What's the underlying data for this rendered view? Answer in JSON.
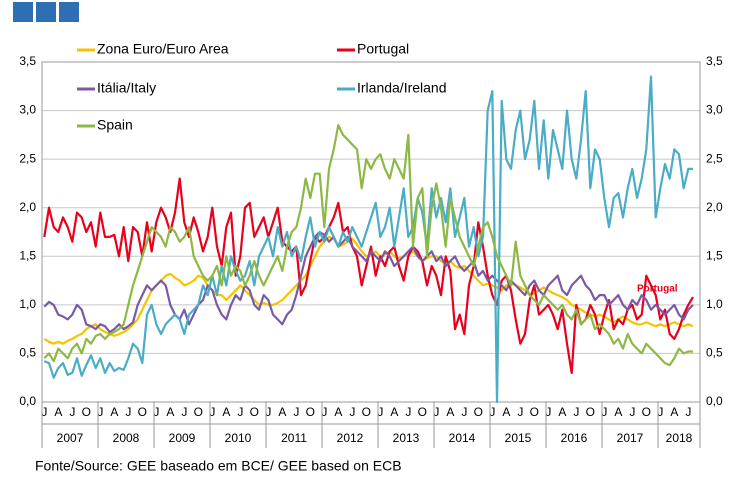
{
  "chart_data": {
    "type": "line",
    "categories": [
      "J",
      null,
      null,
      "A",
      null,
      null,
      "J",
      null,
      null,
      "O",
      null,
      null,
      "J",
      null,
      null,
      "A",
      null,
      null,
      "J",
      null,
      null,
      "O",
      null,
      null,
      "J",
      null,
      null,
      "A",
      null,
      null,
      "J",
      null,
      null,
      "O",
      null,
      null,
      "J",
      null,
      null,
      "A",
      null,
      null,
      "J",
      null,
      null,
      "O",
      null,
      null,
      "J",
      null,
      null,
      "A",
      null,
      null,
      "J",
      null,
      null,
      "O",
      null,
      null,
      "J",
      null,
      null,
      "A",
      null,
      null,
      "J",
      null,
      null,
      "O",
      null,
      null,
      "J",
      null,
      null,
      "A",
      null,
      null,
      "J",
      null,
      null,
      "O",
      null,
      null,
      "J",
      null,
      null,
      "A",
      null,
      null,
      "J",
      null,
      null,
      "O",
      null,
      null,
      "J",
      null,
      null,
      "A",
      null,
      null,
      "J",
      null,
      null,
      "O",
      null,
      null,
      "J",
      null,
      null,
      "A",
      null,
      null,
      "J",
      null,
      null,
      "O",
      null,
      null,
      "J",
      null,
      null,
      "A",
      null,
      null,
      "J",
      null,
      null,
      "O",
      null,
      null,
      "J",
      null,
      null,
      "A",
      null,
      null,
      "J",
      null
    ],
    "year_labels": [
      "2007",
      "2008",
      "2009",
      "2010",
      "2011",
      "2012",
      "2013",
      "2014",
      "2015",
      "2016",
      "2017",
      "2018"
    ],
    "ylim": [
      0,
      3.5
    ],
    "yticks": [
      {
        "value": 0,
        "label": "0,0"
      },
      {
        "value": 0.5,
        "label": "0,5"
      },
      {
        "value": 1,
        "label": "1,0"
      },
      {
        "value": 1.5,
        "label": "1,5"
      },
      {
        "value": 2,
        "label": "2,0"
      },
      {
        "value": 2.5,
        "label": "2,5"
      },
      {
        "value": 3,
        "label": "3,0"
      },
      {
        "value": 3.5,
        "label": "3,5"
      }
    ],
    "grid": true,
    "annotation": "Portugal",
    "source": "Fonte/Source: GEE baseado em BCE/ GEE based on ECB",
    "series": [
      {
        "name": "Zona Euro/Euro Area",
        "color": "#f5c400",
        "values": [
          0.65,
          0.62,
          0.6,
          0.62,
          0.6,
          0.63,
          0.65,
          0.68,
          0.7,
          0.75,
          0.78,
          0.8,
          0.75,
          0.72,
          0.7,
          0.68,
          0.7,
          0.72,
          0.75,
          0.8,
          0.85,
          0.95,
          1.05,
          1.15,
          1.2,
          1.25,
          1.3,
          1.32,
          1.28,
          1.25,
          1.2,
          1.22,
          1.25,
          1.3,
          1.28,
          1.2,
          1.15,
          1.1,
          1.1,
          1.05,
          1.1,
          1.15,
          1.2,
          1.15,
          1.1,
          1.05,
          1.0,
          1.02,
          1.0,
          1.0,
          1.02,
          1.05,
          1.1,
          1.15,
          1.2,
          1.25,
          1.3,
          1.4,
          1.5,
          1.6,
          1.65,
          1.7,
          1.68,
          1.6,
          1.62,
          1.65,
          1.68,
          1.62,
          1.55,
          1.5,
          1.52,
          1.55,
          1.5,
          1.52,
          1.55,
          1.5,
          1.48,
          1.5,
          1.52,
          1.55,
          1.5,
          1.45,
          1.48,
          1.5,
          1.5,
          1.45,
          1.42,
          1.45,
          1.4,
          1.38,
          1.4,
          1.35,
          1.3,
          1.25,
          1.2,
          1.22,
          1.2,
          1.18,
          1.15,
          1.2,
          1.22,
          1.2,
          1.18,
          1.15,
          1.1,
          1.12,
          1.15,
          1.18,
          1.15,
          1.12,
          1.1,
          1.08,
          1.05,
          1.0,
          0.98,
          0.95,
          0.92,
          0.9,
          0.88,
          0.9,
          0.88,
          0.85,
          0.82,
          0.85,
          0.88,
          0.85,
          0.82,
          0.8,
          0.8,
          0.82,
          0.8,
          0.78,
          0.8,
          0.78,
          0.8,
          0.82,
          0.8,
          0.78,
          0.8,
          0.78
        ]
      },
      {
        "name": "Portugal",
        "color": "#e8001c",
        "values": [
          1.7,
          2.0,
          1.8,
          1.75,
          1.9,
          1.8,
          1.65,
          1.95,
          1.9,
          1.75,
          1.85,
          1.6,
          1.95,
          1.7,
          1.7,
          1.72,
          1.5,
          1.8,
          1.45,
          1.8,
          1.75,
          1.5,
          1.85,
          1.55,
          1.85,
          2.0,
          1.9,
          1.75,
          1.95,
          2.3,
          1.85,
          1.7,
          1.9,
          1.75,
          1.55,
          1.7,
          2.0,
          1.6,
          1.4,
          1.8,
          1.95,
          1.3,
          1.5,
          2.0,
          2.05,
          1.7,
          1.8,
          1.9,
          1.7,
          1.85,
          2.0,
          1.65,
          1.6,
          1.55,
          1.6,
          1.1,
          1.2,
          1.45,
          1.7,
          1.65,
          1.7,
          1.8,
          1.9,
          2.05,
          1.75,
          1.8,
          1.6,
          1.5,
          1.2,
          1.4,
          1.6,
          1.3,
          1.5,
          1.4,
          1.55,
          1.6,
          1.4,
          1.25,
          1.5,
          1.6,
          1.55,
          1.45,
          1.2,
          1.4,
          1.3,
          1.1,
          1.5,
          1.35,
          0.75,
          0.9,
          0.7,
          1.2,
          1.4,
          1.85,
          1.6,
          1.3,
          1.1,
          1.0,
          1.25,
          1.3,
          1.15,
          0.85,
          0.6,
          0.7,
          1.05,
          1.2,
          0.9,
          0.95,
          1.0,
          0.9,
          0.75,
          0.95,
          0.6,
          0.3,
          1.0,
          0.8,
          0.85,
          1.0,
          0.9,
          0.7,
          0.9,
          1.05,
          0.75,
          0.85,
          0.8,
          0.95,
          1.0,
          0.85,
          0.9,
          1.3,
          1.2,
          1.1,
          0.85,
          0.95,
          0.7,
          0.65,
          0.75,
          0.9,
          1.0,
          1.08
        ]
      },
      {
        "name": "Itália/Italy",
        "color": "#7a5aa6",
        "values": [
          0.98,
          1.03,
          1.0,
          0.9,
          0.88,
          0.85,
          0.9,
          1.0,
          0.95,
          0.8,
          0.78,
          0.75,
          0.8,
          0.78,
          0.72,
          0.75,
          0.8,
          0.75,
          0.78,
          0.82,
          1.0,
          1.1,
          1.2,
          1.15,
          1.2,
          1.25,
          1.2,
          1.0,
          0.9,
          0.85,
          0.95,
          0.8,
          0.9,
          1.0,
          1.05,
          1.2,
          1.15,
          1.0,
          0.9,
          0.85,
          1.0,
          1.1,
          1.05,
          1.2,
          1.15,
          1.0,
          0.95,
          1.1,
          1.05,
          0.9,
          0.85,
          0.8,
          0.9,
          0.95,
          1.1,
          1.3,
          1.5,
          1.6,
          1.7,
          1.75,
          1.72,
          1.65,
          1.7,
          1.6,
          1.65,
          1.7,
          1.6,
          1.55,
          1.5,
          1.45,
          1.55,
          1.5,
          1.45,
          1.55,
          1.5,
          1.4,
          1.45,
          1.5,
          1.55,
          1.6,
          1.5,
          1.45,
          1.5,
          1.55,
          1.45,
          1.5,
          1.4,
          1.45,
          1.5,
          1.4,
          1.35,
          1.4,
          1.45,
          1.3,
          1.35,
          1.25,
          1.3,
          1.25,
          1.2,
          1.15,
          1.25,
          1.2,
          1.15,
          1.1,
          1.2,
          1.25,
          1.15,
          1.1,
          1.2,
          1.25,
          1.3,
          1.15,
          1.1,
          1.2,
          1.25,
          1.3,
          1.2,
          1.15,
          1.05,
          1.1,
          1.1,
          1.0,
          1.05,
          1.1,
          1.0,
          0.95,
          1.05,
          1.0,
          1.1,
          1.05,
          0.95,
          1.0,
          0.95,
          0.9,
          0.95,
          1.0,
          0.9,
          0.85,
          0.95,
          1.0
        ]
      },
      {
        "name": "Irlanda/Ireland",
        "color": "#4bacc6",
        "values": [
          0.42,
          0.4,
          0.25,
          0.35,
          0.4,
          0.28,
          0.3,
          0.45,
          0.27,
          0.38,
          0.48,
          0.35,
          0.45,
          0.3,
          0.4,
          0.32,
          0.35,
          0.33,
          0.45,
          0.6,
          0.55,
          0.4,
          0.9,
          1.0,
          0.8,
          0.7,
          0.8,
          0.85,
          0.9,
          0.85,
          0.7,
          0.9,
          0.95,
          1.0,
          1.2,
          1.1,
          1.3,
          1.1,
          1.4,
          1.2,
          1.5,
          1.35,
          1.25,
          1.3,
          1.45,
          1.2,
          1.5,
          1.6,
          1.7,
          1.5,
          1.8,
          1.6,
          1.75,
          1.5,
          1.6,
          1.45,
          1.7,
          1.9,
          1.6,
          1.75,
          1.65,
          1.8,
          1.7,
          1.6,
          1.75,
          1.65,
          1.8,
          1.7,
          1.6,
          1.75,
          1.9,
          2.05,
          1.7,
          1.8,
          2.0,
          1.6,
          1.9,
          2.2,
          1.7,
          1.8,
          2.1,
          1.95,
          1.6,
          2.2,
          1.9,
          2.1,
          1.85,
          2.2,
          1.7,
          1.9,
          2.1,
          1.6,
          1.8,
          1.5,
          1.7,
          3.0,
          3.2,
          0.0,
          3.1,
          2.5,
          2.4,
          2.8,
          3.0,
          2.5,
          2.7,
          3.1,
          2.4,
          2.9,
          2.3,
          2.8,
          2.6,
          2.4,
          3.0,
          2.5,
          2.3,
          2.7,
          3.2,
          2.2,
          2.6,
          2.5,
          2.1,
          1.8,
          2.1,
          2.15,
          1.9,
          2.2,
          2.4,
          2.1,
          2.3,
          2.6,
          3.35,
          1.9,
          2.2,
          2.45,
          2.3,
          2.6,
          2.55,
          2.2,
          2.4,
          2.4
        ]
      },
      {
        "name": "Spain",
        "color": "#8db843",
        "values": [
          0.45,
          0.5,
          0.42,
          0.55,
          0.5,
          0.45,
          0.55,
          0.6,
          0.5,
          0.65,
          0.6,
          0.68,
          0.7,
          0.65,
          0.7,
          0.72,
          0.75,
          0.8,
          1.0,
          1.2,
          1.35,
          1.5,
          1.65,
          1.8,
          1.75,
          1.7,
          1.6,
          1.8,
          1.75,
          1.65,
          1.7,
          1.8,
          1.5,
          1.4,
          1.3,
          1.25,
          1.3,
          1.4,
          1.2,
          1.5,
          1.3,
          1.4,
          1.35,
          1.2,
          1.3,
          1.45,
          1.3,
          1.2,
          1.3,
          1.4,
          1.5,
          1.35,
          1.6,
          1.75,
          1.8,
          2.0,
          2.3,
          2.1,
          2.35,
          2.35,
          1.8,
          2.4,
          2.6,
          2.85,
          2.75,
          2.7,
          2.65,
          2.6,
          2.2,
          2.5,
          2.4,
          2.5,
          2.55,
          2.4,
          2.3,
          2.5,
          2.4,
          2.3,
          2.75,
          1.6,
          2.1,
          2.2,
          1.5,
          2.0,
          2.25,
          2.0,
          1.6,
          2.1,
          1.9,
          1.7,
          1.6,
          1.5,
          1.4,
          1.6,
          1.8,
          1.85,
          1.7,
          1.5,
          1.4,
          1.3,
          1.2,
          1.65,
          1.3,
          1.2,
          1.1,
          1.05,
          1.0,
          1.1,
          1.05,
          1.0,
          0.95,
          1.0,
          0.9,
          0.85,
          0.95,
          0.8,
          0.85,
          0.9,
          0.75,
          0.8,
          0.75,
          0.7,
          0.6,
          0.65,
          0.55,
          0.7,
          0.6,
          0.55,
          0.5,
          0.6,
          0.55,
          0.5,
          0.45,
          0.4,
          0.38,
          0.45,
          0.55,
          0.5,
          0.52,
          0.52
        ]
      }
    ]
  }
}
